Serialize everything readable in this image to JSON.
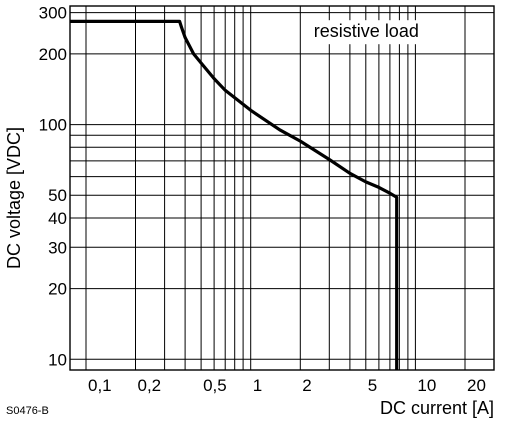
{
  "chart_data": {
    "type": "line",
    "title": "",
    "xlabel": "DC current [A]",
    "ylabel": "DC voltage [VDC]",
    "x_scale": "log",
    "y_scale": "log",
    "xlim": [
      0.08,
      30
    ],
    "ylim": [
      9,
      320
    ],
    "grid": true,
    "x_ticks": [
      {
        "value": 0.1,
        "label": "0,1"
      },
      {
        "value": 0.2,
        "label": "0,2"
      },
      {
        "value": 0.5,
        "label": "0,5"
      },
      {
        "value": 1,
        "label": "1"
      },
      {
        "value": 2,
        "label": "2"
      },
      {
        "value": 5,
        "label": "5"
      },
      {
        "value": 10,
        "label": "10"
      },
      {
        "value": 20,
        "label": "20"
      }
    ],
    "y_ticks": [
      {
        "value": 10,
        "label": "10"
      },
      {
        "value": 20,
        "label": "20"
      },
      {
        "value": 30,
        "label": "30"
      },
      {
        "value": 40,
        "label": "40"
      },
      {
        "value": 50,
        "label": "50"
      },
      {
        "value": 100,
        "label": "100"
      },
      {
        "value": 200,
        "label": "200"
      },
      {
        "value": 300,
        "label": "300"
      }
    ],
    "x_grid": [
      0.1,
      0.2,
      0.3,
      0.4,
      0.5,
      0.6,
      0.7,
      0.8,
      0.9,
      1,
      2,
      3,
      4,
      5,
      6,
      7,
      8,
      9,
      10,
      20,
      30
    ],
    "y_grid": [
      10,
      20,
      30,
      40,
      50,
      60,
      70,
      80,
      90,
      100,
      200,
      300
    ],
    "series": [
      {
        "x": [
          0.08,
          0.37,
          0.38,
          0.4,
          0.45,
          0.5,
          0.6,
          0.7,
          1,
          1.5,
          2,
          3,
          4,
          5,
          6,
          7,
          7.7,
          7.7
        ],
        "y": [
          275,
          275,
          260,
          235,
          200,
          183,
          157,
          140,
          115,
          95,
          85,
          71,
          62,
          57,
          54,
          51,
          49,
          9
        ]
      }
    ],
    "annotations": [
      {
        "text": "resistive load",
        "x": 5,
        "y": 245
      }
    ],
    "figure_ref": "S0476-B"
  }
}
